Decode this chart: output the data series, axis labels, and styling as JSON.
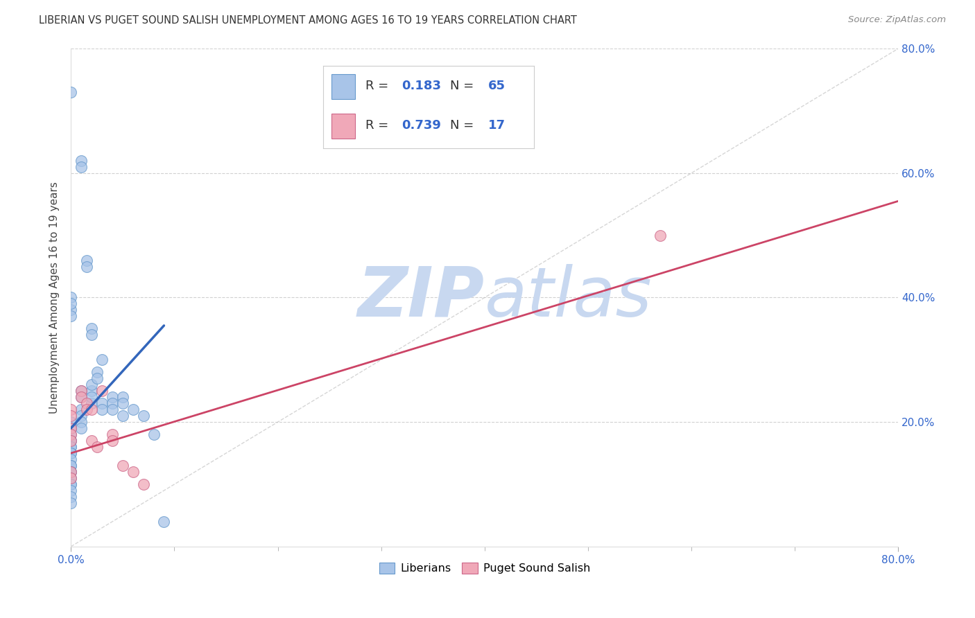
{
  "title": "LIBERIAN VS PUGET SOUND SALISH UNEMPLOYMENT AMONG AGES 16 TO 19 YEARS CORRELATION CHART",
  "source": "Source: ZipAtlas.com",
  "ylabel": "Unemployment Among Ages 16 to 19 years",
  "xlim": [
    0.0,
    0.8
  ],
  "ylim": [
    0.0,
    0.8
  ],
  "xticks_labeled": [
    0.0,
    0.8
  ],
  "xticklabels": [
    "0.0%",
    "80.0%"
  ],
  "yticks_labeled": [
    0.2,
    0.4,
    0.6,
    0.8
  ],
  "yticklabels_right": [
    "20.0%",
    "40.0%",
    "60.0%",
    "80.0%"
  ],
  "xticks_minor": [
    0.1,
    0.2,
    0.3,
    0.4,
    0.5,
    0.6,
    0.7
  ],
  "grid_yticks": [
    0.2,
    0.4,
    0.6,
    0.8
  ],
  "grid_color": "#cccccc",
  "background_color": "#ffffff",
  "watermark_zip": "ZIP",
  "watermark_atlas": "atlas",
  "watermark_color": "#c8d8f0",
  "liberians_color": "#a8c4e8",
  "liberians_edge_color": "#6699cc",
  "salish_color": "#f0a8b8",
  "salish_edge_color": "#cc6688",
  "blue_line_color": "#3366bb",
  "pink_line_color": "#cc4466",
  "diag_line_color": "#bbbbbb",
  "legend_R_blue": "0.183",
  "legend_N_blue": "65",
  "legend_R_pink": "0.739",
  "legend_N_pink": "17",
  "legend_label_blue": "Liberians",
  "legend_label_pink": "Puget Sound Salish",
  "liberians_x": [
    0.0,
    0.0,
    0.0,
    0.0,
    0.0,
    0.0,
    0.0,
    0.0,
    0.0,
    0.0,
    0.0,
    0.0,
    0.0,
    0.0,
    0.0,
    0.0,
    0.0,
    0.0,
    0.0,
    0.0,
    0.0,
    0.0,
    0.0,
    0.0,
    0.0,
    0.01,
    0.01,
    0.01,
    0.01,
    0.01,
    0.01,
    0.01,
    0.01,
    0.015,
    0.015,
    0.02,
    0.02,
    0.02,
    0.02,
    0.02,
    0.02,
    0.025,
    0.025,
    0.03,
    0.03,
    0.03,
    0.04,
    0.04,
    0.04,
    0.05,
    0.05,
    0.05,
    0.06,
    0.07,
    0.08,
    0.09
  ],
  "liberians_y": [
    0.2,
    0.19,
    0.18,
    0.17,
    0.17,
    0.16,
    0.16,
    0.15,
    0.15,
    0.14,
    0.13,
    0.13,
    0.12,
    0.12,
    0.11,
    0.1,
    0.1,
    0.09,
    0.08,
    0.07,
    0.73,
    0.38,
    0.37,
    0.4,
    0.39,
    0.62,
    0.61,
    0.25,
    0.24,
    0.22,
    0.21,
    0.2,
    0.19,
    0.46,
    0.45,
    0.35,
    0.34,
    0.23,
    0.25,
    0.24,
    0.26,
    0.28,
    0.27,
    0.3,
    0.23,
    0.22,
    0.24,
    0.23,
    0.22,
    0.24,
    0.23,
    0.21,
    0.22,
    0.21,
    0.18,
    0.04
  ],
  "salish_x": [
    0.0,
    0.0,
    0.0,
    0.0,
    0.0,
    0.0,
    0.0,
    0.01,
    0.01,
    0.015,
    0.015,
    0.02,
    0.02,
    0.025,
    0.03,
    0.04,
    0.04,
    0.05,
    0.06,
    0.07,
    0.57
  ],
  "salish_y": [
    0.22,
    0.21,
    0.19,
    0.18,
    0.17,
    0.12,
    0.11,
    0.25,
    0.24,
    0.23,
    0.22,
    0.22,
    0.17,
    0.16,
    0.25,
    0.18,
    0.17,
    0.13,
    0.12,
    0.1,
    0.5
  ],
  "blue_line_x": [
    0.0,
    0.09
  ],
  "blue_line_y": [
    0.19,
    0.355
  ],
  "pink_line_x": [
    0.0,
    0.8
  ],
  "pink_line_y": [
    0.15,
    0.555
  ]
}
